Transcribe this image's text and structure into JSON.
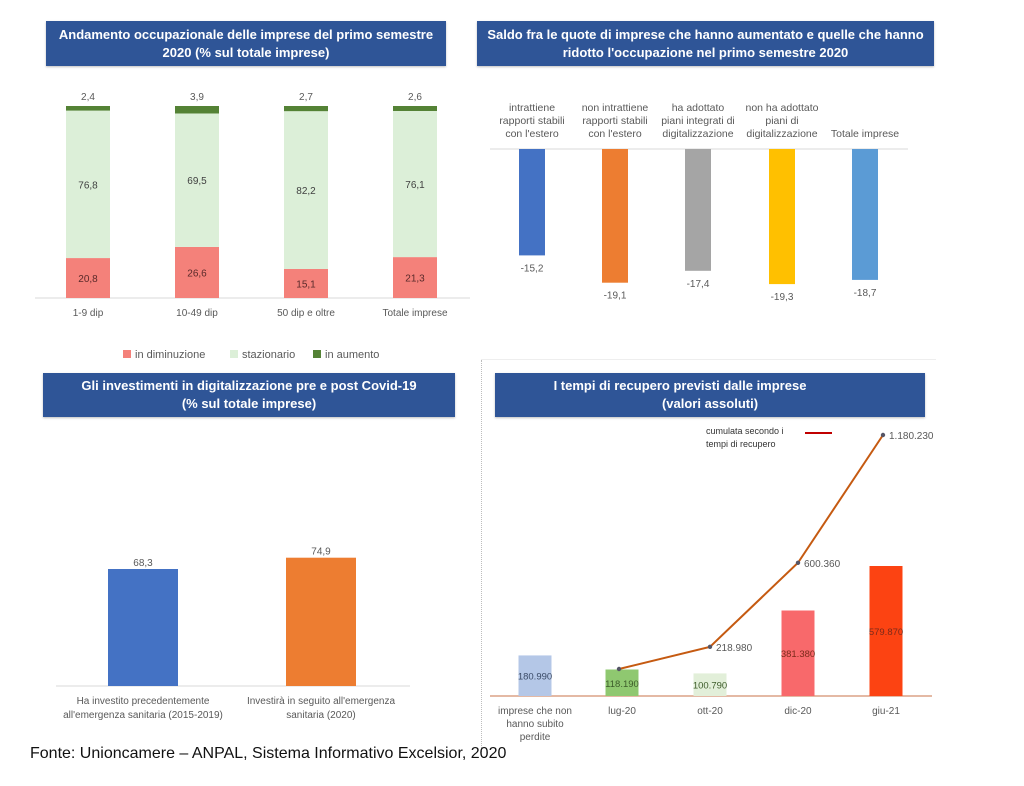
{
  "source": "Fonte: Unioncamere – ANPAL, Sistema Informativo Excelsior, 2020",
  "chart_data": [
    {
      "id": "chart1",
      "type": "bar",
      "stacked": true,
      "title_lines": [
        "Andamento occupazionale delle imprese del primo semestre",
        "2020 (% sul totale imprese)"
      ],
      "categories": [
        "1-9 dip",
        "10-49 dip",
        "50 dip e oltre",
        "Totale imprese"
      ],
      "series": [
        {
          "name": "in diminuzione",
          "color": "#f4817a",
          "values": [
            20.8,
            26.6,
            15.1,
            21.3
          ],
          "labels": [
            "20,8",
            "26,6",
            "15,1",
            "21,3"
          ]
        },
        {
          "name": "stazionario",
          "color": "#dcefd8",
          "values": [
            76.8,
            69.5,
            82.2,
            76.1
          ],
          "labels": [
            "76,8",
            "69,5",
            "82,2",
            "76,1"
          ]
        },
        {
          "name": "in aumento",
          "color": "#548235",
          "values": [
            2.4,
            3.9,
            2.7,
            2.6
          ],
          "labels": [
            "2,4",
            "3,9",
            "2,7",
            "2,6"
          ]
        }
      ],
      "ylim": [
        0,
        100
      ],
      "legend": "bottom",
      "grid": false
    },
    {
      "id": "chart2",
      "type": "bar",
      "title_lines": [
        "Saldo fra le quote di imprese che hanno aumentato e quelle che hanno",
        "ridotto l'occupazione nel primo semestre 2020"
      ],
      "categories": [
        [
          "intrattiene",
          "rapporti stabili",
          "con l'estero"
        ],
        [
          "non intrattiene",
          "rapporti stabili",
          "con l'estero"
        ],
        [
          "ha adottato",
          "piani integrati di",
          "digitalizzazione"
        ],
        [
          "non ha adottato",
          "piani di",
          "digitalizzazione"
        ],
        [
          "Totale imprese"
        ]
      ],
      "values": [
        -15.2,
        -19.1,
        -17.4,
        -19.3,
        -18.7
      ],
      "labels": [
        "-15,2",
        "-19,1",
        "-17,4",
        "-19,3",
        "-18,7"
      ],
      "colors": [
        "#4472c4",
        "#ed7d31",
        "#a5a5a5",
        "#ffc000",
        "#5b9bd5"
      ],
      "ylim": [
        -20,
        0
      ],
      "grid": false
    },
    {
      "id": "chart3",
      "type": "bar",
      "title_lines": [
        "Gli investimenti in digitalizzazione pre e post Covid-19",
        "(% sul totale imprese)"
      ],
      "categories": [
        [
          "Ha investito precedentemente",
          "all'emergenza sanitaria (2015-2019)"
        ],
        [
          "Investirà in seguito all'emergenza",
          "sanitaria (2020)"
        ]
      ],
      "values": [
        68.3,
        74.9
      ],
      "labels": [
        "68,3",
        "74,9"
      ],
      "colors": [
        "#4472c4",
        "#ed7d31"
      ],
      "ylim": [
        0,
        100
      ],
      "grid": false
    },
    {
      "id": "chart4",
      "type": "bar",
      "title_lines": [
        "I tempi di recupero previsti dalle imprese",
        "(valori assoluti)"
      ],
      "categories": [
        [
          "imprese che non",
          "hanno subito",
          "perdite"
        ],
        [
          "lug-20"
        ],
        [
          "ott-20"
        ],
        [
          "dic-20"
        ],
        [
          "giu-21"
        ]
      ],
      "bars": {
        "values": [
          180990,
          118190,
          100790,
          381380,
          579870
        ],
        "labels": [
          "180.990",
          "118.190",
          "100.790",
          "381.380",
          "579.870"
        ],
        "colors": [
          "#b4c7e7",
          "#8fc870",
          "#e2efd9",
          "#f8696b",
          "#fc4312"
        ]
      },
      "line": {
        "name": "cumulata secondo i tempi di recupero",
        "legend_lines": [
          "cumulata secondo i",
          "tempi di recupero"
        ],
        "legend_color": "#c00000",
        "color": "#c55a11",
        "x_indices": [
          1,
          2,
          3,
          4
        ],
        "values": [
          118190,
          218980,
          600360,
          1180230
        ],
        "labels": [
          "",
          "218.980",
          "600.360",
          "1.180.230"
        ]
      },
      "ylim": [
        0,
        1200000
      ],
      "legend": "top-right",
      "grid": false
    }
  ]
}
